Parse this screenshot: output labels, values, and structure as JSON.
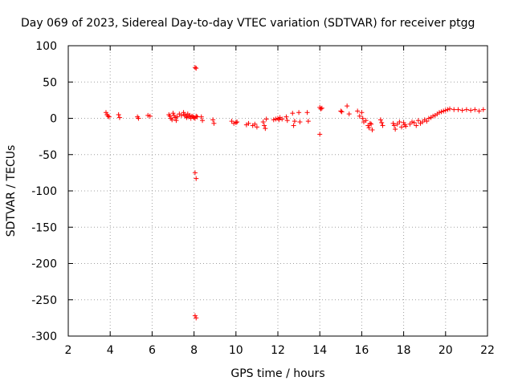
{
  "chart_data": {
    "type": "scatter",
    "title": "Day 069 of 2023, Sidereal Day-to-day VTEC variation (SDTVAR) for receiver ptgg",
    "xlabel": "GPS time / hours",
    "ylabel": "SDTVAR / TECUs",
    "xlim": [
      2,
      22
    ],
    "ylim": [
      -300,
      100
    ],
    "xticks": [
      2,
      4,
      6,
      8,
      10,
      12,
      14,
      16,
      18,
      20,
      22
    ],
    "yticks": [
      100,
      50,
      0,
      -50,
      -100,
      -150,
      -200,
      -250,
      -300
    ],
    "grid": true,
    "marker": "+",
    "color": "#ff0000",
    "series": [
      {
        "name": "SDTVAR",
        "x": [
          3.8,
          3.85,
          3.9,
          3.95,
          4.4,
          4.45,
          5.3,
          5.35,
          5.8,
          5.9,
          6.8,
          6.85,
          6.9,
          6.95,
          7.0,
          7.05,
          7.1,
          7.15,
          7.2,
          7.3,
          7.4,
          7.5,
          7.55,
          7.6,
          7.65,
          7.7,
          7.75,
          7.8,
          7.85,
          7.9,
          7.95,
          8.0,
          8.05,
          8.1,
          8.15,
          8.05,
          8.1,
          8.05,
          8.1,
          8.05,
          8.1,
          8.35,
          8.4,
          8.9,
          8.95,
          9.8,
          9.9,
          10.0,
          10.05,
          10.5,
          10.6,
          10.8,
          10.9,
          11.0,
          11.3,
          11.35,
          11.4,
          11.45,
          11.8,
          11.9,
          12.0,
          12.05,
          12.1,
          12.2,
          12.4,
          12.45,
          12.7,
          12.75,
          12.8,
          13.0,
          13.05,
          13.4,
          13.45,
          14.0,
          14.05,
          14.1,
          14.0,
          15.0,
          15.05,
          15.3,
          15.4,
          15.8,
          15.9,
          16.0,
          16.05,
          16.1,
          16.2,
          16.3,
          16.35,
          16.4,
          16.45,
          16.5,
          16.9,
          16.95,
          17.0,
          17.5,
          17.55,
          17.6,
          17.7,
          17.8,
          17.9,
          18.0,
          18.05,
          18.1,
          18.3,
          18.4,
          18.5,
          18.6,
          18.7,
          18.8,
          18.9,
          19.0,
          19.1,
          19.2,
          19.3,
          19.4,
          19.5,
          19.6,
          19.7,
          19.8,
          19.9,
          20.0,
          20.1,
          20.2,
          20.4,
          20.6,
          20.8,
          21.0,
          21.2,
          21.4,
          21.6,
          21.8
        ],
        "y": [
          8,
          5,
          3,
          2,
          5,
          1,
          2,
          0,
          4,
          3,
          5,
          3,
          0,
          -2,
          7,
          4,
          1,
          -3,
          2,
          6,
          4,
          8,
          5,
          3,
          1,
          6,
          2,
          4,
          0,
          3,
          2,
          1,
          0,
          3,
          2,
          70,
          69,
          -75,
          -83,
          -272,
          -275,
          2,
          -3,
          -2,
          -7,
          -4,
          -7,
          -6,
          -5,
          -9,
          -7,
          -10,
          -8,
          -12,
          -5,
          -10,
          -14,
          -1,
          -2,
          -1,
          0,
          -2,
          1,
          -1,
          2,
          -3,
          7,
          -10,
          -4,
          8,
          -5,
          8,
          -4,
          15,
          13,
          14,
          -22,
          10,
          9,
          17,
          6,
          10,
          3,
          8,
          0,
          -5,
          -3,
          -10,
          -13,
          -7,
          -8,
          -16,
          -2,
          -6,
          -10,
          -7,
          -10,
          -15,
          -8,
          -5,
          -12,
          -6,
          -9,
          -11,
          -8,
          -5,
          -6,
          -10,
          -3,
          -7,
          -5,
          -2,
          -4,
          0,
          1,
          3,
          4,
          6,
          8,
          9,
          10,
          11,
          12,
          13,
          12,
          12,
          11,
          12,
          11,
          12,
          10,
          12
        ]
      }
    ]
  }
}
